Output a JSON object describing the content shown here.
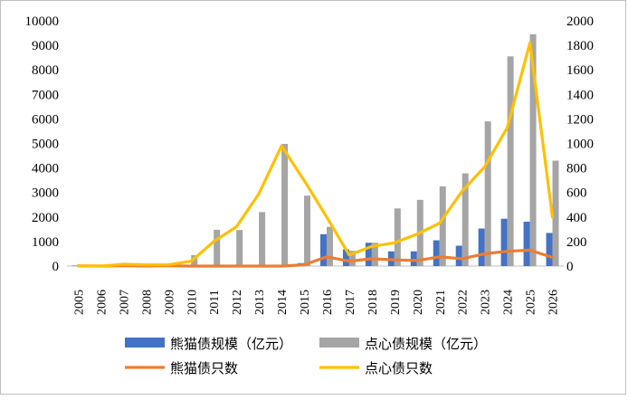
{
  "chart_data": {
    "type": "bar",
    "categories": [
      "2005",
      "2006",
      "2007",
      "2008",
      "2009",
      "2010",
      "2011",
      "2012",
      "2013",
      "2014",
      "2015",
      "2016",
      "2017",
      "2018",
      "2019",
      "2020",
      "2021",
      "2022",
      "2023",
      "2024",
      "2025",
      "2026"
    ],
    "bar_series": [
      {
        "name": "熊猫债规模（亿元）",
        "axis": "left",
        "color": "#4472c4",
        "values": [
          20,
          0,
          40,
          0,
          40,
          0,
          0,
          0,
          0,
          0,
          120,
          1300,
          680,
          950,
          600,
          600,
          1050,
          830,
          1530,
          1930,
          1810,
          1350
        ]
      },
      {
        "name": "点心债规模（亿元）",
        "axis": "left",
        "color": "#a5a5a5",
        "values": [
          0,
          0,
          120,
          0,
          100,
          450,
          1480,
          1470,
          2200,
          4980,
          2870,
          1600,
          620,
          950,
          2350,
          2700,
          3250,
          3780,
          5900,
          8550,
          9450,
          4300
        ]
      }
    ],
    "line_series": [
      {
        "name": "熊猫债只数",
        "axis": "right",
        "color": "#ed7d31",
        "values": [
          2,
          0,
          3,
          0,
          2,
          0,
          0,
          0,
          0,
          0,
          10,
          75,
          40,
          60,
          50,
          45,
          75,
          60,
          100,
          120,
          130,
          70
        ]
      },
      {
        "name": "点心债只数",
        "axis": "right",
        "color": "#ffc000",
        "values": [
          0,
          0,
          15,
          10,
          10,
          40,
          200,
          320,
          590,
          980,
          700,
          400,
          90,
          160,
          190,
          260,
          350,
          610,
          810,
          1130,
          1820,
          400
        ]
      }
    ],
    "ylim_left": [
      0,
      10000
    ],
    "yticks_left": [
      0,
      1000,
      2000,
      3000,
      4000,
      5000,
      6000,
      7000,
      8000,
      9000,
      10000
    ],
    "ylim_right": [
      0,
      2000
    ],
    "yticks_right": [
      0,
      200,
      400,
      600,
      800,
      1000,
      1200,
      1400,
      1600,
      1800,
      2000
    ],
    "grid": false,
    "legend_position": "bottom"
  }
}
